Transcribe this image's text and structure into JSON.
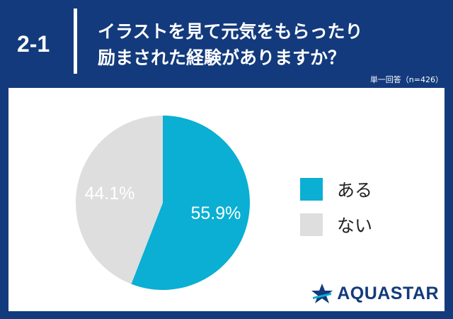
{
  "header": {
    "number": "2-1",
    "question_lines": [
      "イラストを見て元気をもらったり",
      "励まされた経験がありますか？"
    ],
    "meta": "単一回答（n=426）"
  },
  "chart_data": {
    "type": "pie",
    "categories": [
      "ある",
      "ない"
    ],
    "values": [
      55.9,
      44.1
    ],
    "labels": [
      "55.9%",
      "44.1%"
    ],
    "colors": [
      "#0aafd3",
      "#dedede"
    ],
    "label_colors": [
      "#ffffff",
      "#ffffff"
    ],
    "legend_placement": "right"
  },
  "legend": {
    "items": [
      {
        "label": "ある",
        "color": "#0aafd3"
      },
      {
        "label": "ない",
        "color": "#dedede"
      }
    ]
  },
  "brand": {
    "name": "AQUASTAR",
    "color": "#133a7c",
    "accent": "#0aafd3"
  }
}
